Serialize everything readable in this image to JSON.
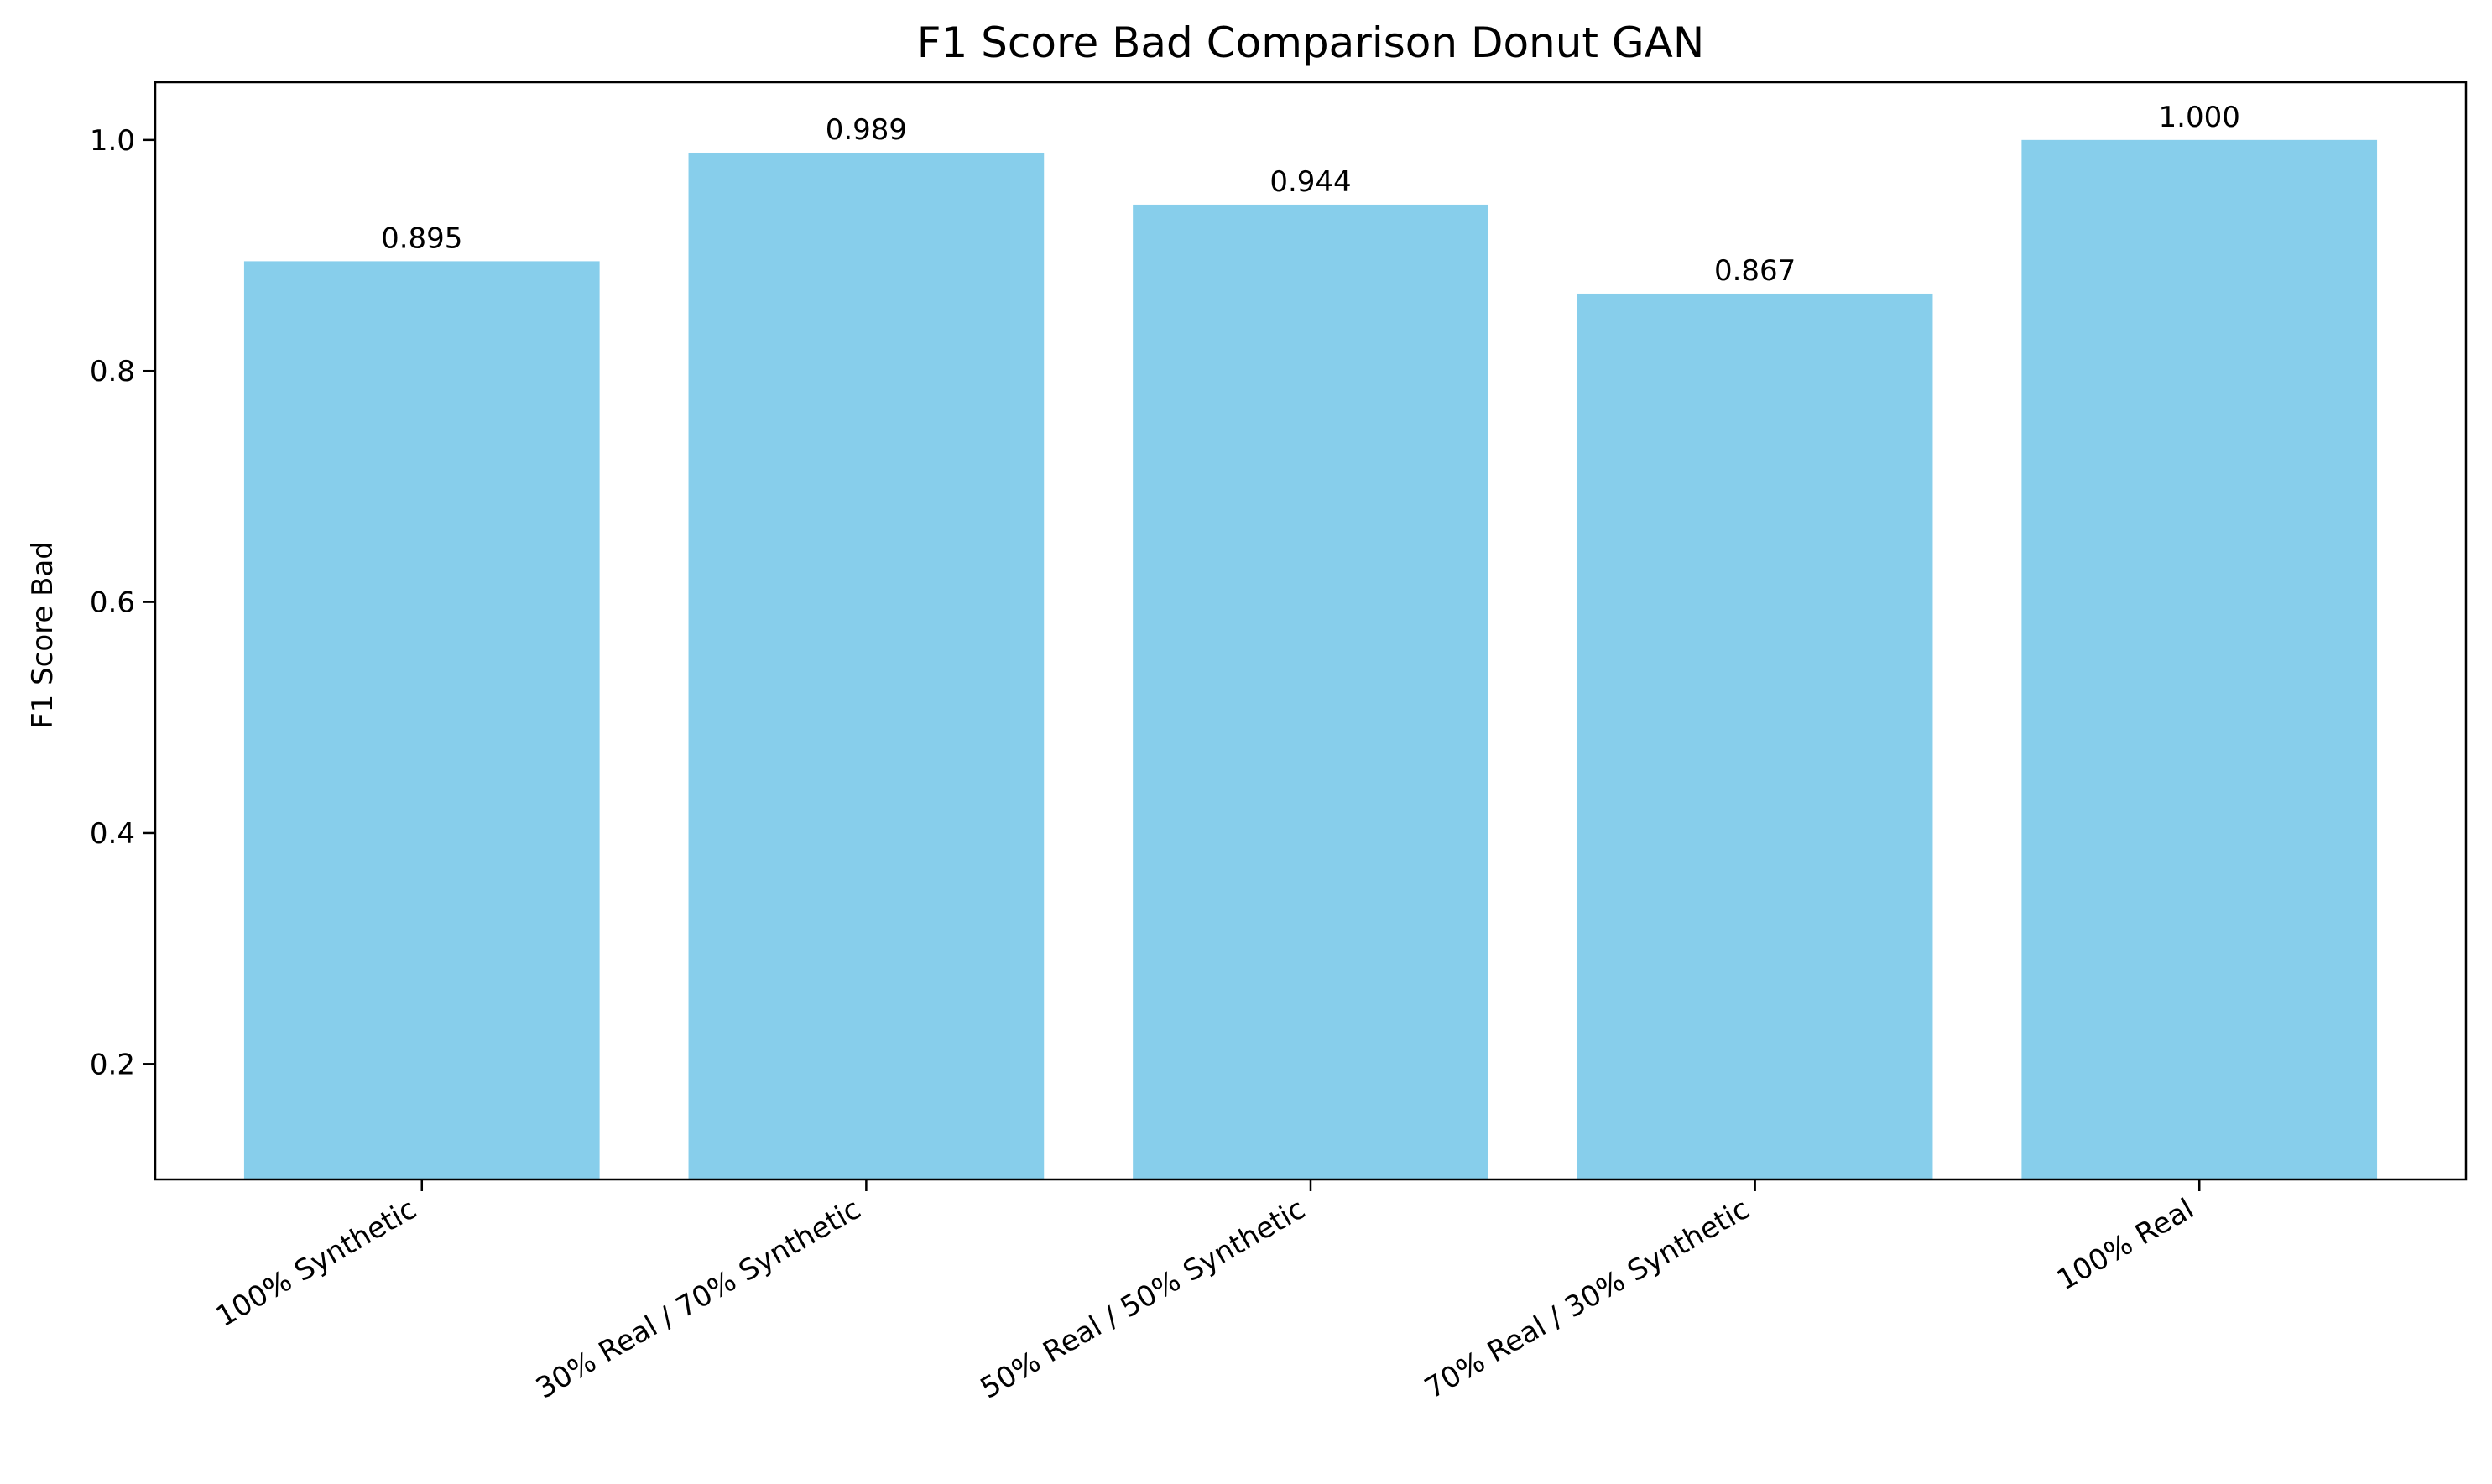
{
  "chart_data": {
    "type": "bar",
    "title": "F1 Score Bad Comparison Donut GAN",
    "xlabel": "",
    "ylabel": "F1 Score Bad",
    "categories": [
      "100% Synthetic",
      "30% Real / 70% Synthetic",
      "50% Real / 50% Synthetic",
      "70% Real / 30% Synthetic",
      "100% Real"
    ],
    "values": [
      0.895,
      0.989,
      0.944,
      0.867,
      1.0
    ],
    "data_labels": [
      "0.895",
      "0.989",
      "0.944",
      "0.867",
      "1.000"
    ],
    "yticks": [
      0.2,
      0.4,
      0.6,
      0.8,
      1.0
    ],
    "ytick_labels": [
      "0.2",
      "0.4",
      "0.6",
      "0.8",
      "1.0"
    ],
    "ylim": [
      0.1,
      1.05
    ],
    "grid": false,
    "legend": "none",
    "colors": {
      "bar": "#87CEEB",
      "axis": "#000000",
      "text": "#000000",
      "background": "#ffffff"
    }
  }
}
